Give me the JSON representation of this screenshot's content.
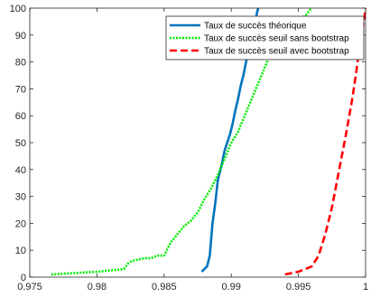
{
  "chart_data": {
    "type": "line",
    "title": "",
    "xlabel": "",
    "ylabel": "",
    "xlim": [
      0.975,
      1.0
    ],
    "ylim": [
      0,
      100
    ],
    "xticks": [
      0.975,
      0.98,
      0.985,
      0.99,
      0.995,
      1.0
    ],
    "xtick_labels": [
      "0.975",
      "0.98",
      "0.985",
      "0.99",
      "0.995",
      "1"
    ],
    "yticks": [
      0,
      10,
      20,
      30,
      40,
      50,
      60,
      70,
      80,
      90,
      100
    ],
    "ytick_labels": [
      "0",
      "10",
      "20",
      "30",
      "40",
      "50",
      "60",
      "70",
      "80",
      "90",
      "100"
    ],
    "grid": false,
    "legend_position": "top-right",
    "series": [
      {
        "name": "Taux de succès théorique",
        "color": "#0072BD",
        "style": "solid",
        "x": [
          0.9878,
          0.9882,
          0.9884,
          0.9886,
          0.9888,
          0.989,
          0.9893,
          0.9895,
          0.9897,
          0.9899,
          0.9901,
          0.9903,
          0.9905,
          0.9907,
          0.9909,
          0.9911,
          0.9913,
          0.9915,
          0.9917,
          0.9918,
          0.9919,
          0.992
        ],
        "y": [
          2,
          4,
          8,
          20,
          27,
          36,
          42,
          47,
          50,
          53,
          57,
          62,
          66,
          71,
          75,
          80,
          84,
          88,
          92,
          95,
          98,
          100
        ]
      },
      {
        "name": "Taux de succès seuil sans bootstrap",
        "color": "#00EE00",
        "style": "dotted",
        "x": [
          0.9766,
          0.98,
          0.982,
          0.9823,
          0.9826,
          0.9835,
          0.984,
          0.9845,
          0.985,
          0.9855,
          0.986,
          0.9865,
          0.987,
          0.9875,
          0.988,
          0.9885,
          0.989,
          0.9895,
          0.99,
          0.9905,
          0.991,
          0.9915,
          0.992,
          0.9925,
          0.993,
          0.9935,
          0.994,
          0.9945,
          0.995,
          0.9955,
          0.9958,
          0.996
        ],
        "y": [
          1,
          2,
          3,
          5,
          6,
          7,
          7,
          8,
          8,
          13,
          16,
          19,
          21,
          24,
          29,
          33,
          38,
          44,
          50,
          54,
          60,
          66,
          72,
          78,
          84,
          88,
          92,
          94,
          96,
          97,
          99,
          100
        ]
      },
      {
        "name": "Taux de succès seuil avec bootstrap",
        "color": "#FF0000",
        "style": "dashed",
        "x": [
          0.994,
          0.995,
          0.9955,
          0.996,
          0.9965,
          0.997,
          0.9975,
          0.998,
          0.9985,
          0.999,
          0.9993,
          0.9995,
          0.9997,
          0.9999,
          1.0
        ],
        "y": [
          1,
          2,
          3,
          4,
          8,
          16,
          26,
          39,
          52,
          66,
          76,
          84,
          90,
          96,
          100
        ]
      }
    ]
  }
}
